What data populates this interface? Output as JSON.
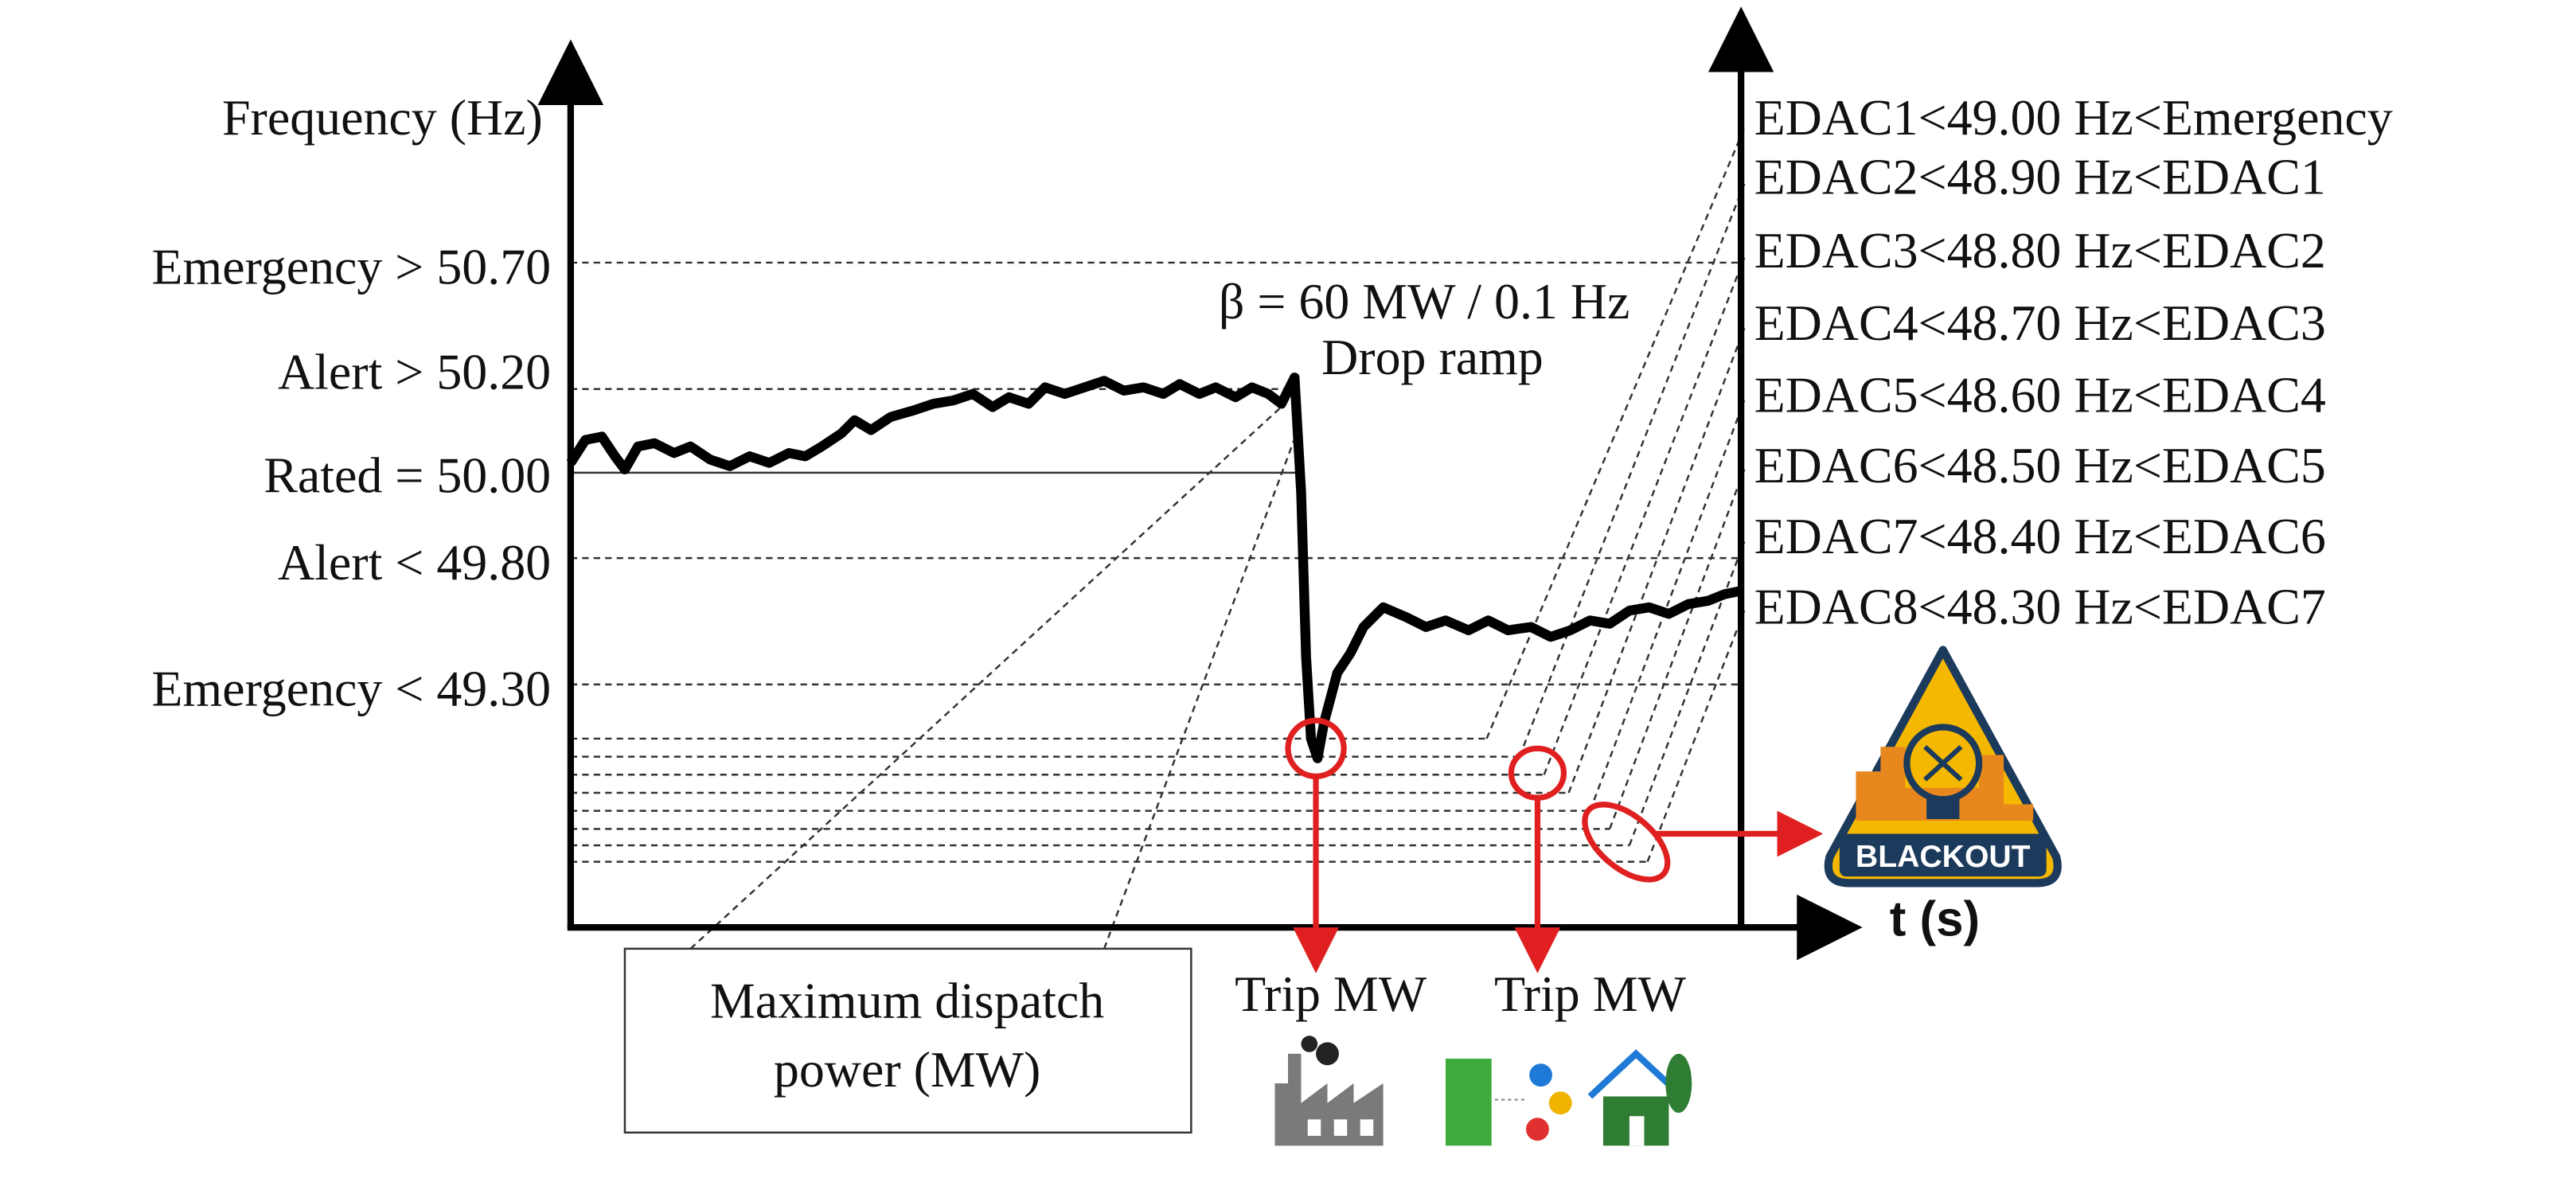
{
  "axis": {
    "y_label": "Frequency (Hz)",
    "x_label": "t (s)"
  },
  "thresholds": [
    "Emergency > 50.70",
    "Alert > 50.20",
    "Rated = 50.00",
    "Alert < 49.80",
    "Emergency < 49.30"
  ],
  "edac_levels": [
    "EDAC1<49.00 Hz<Emergency",
    "EDAC2<48.90 Hz<EDAC1",
    "EDAC3<48.80 Hz<EDAC2",
    "EDAC4<48.70 Hz<EDAC3",
    "EDAC5<48.60 Hz<EDAC4",
    "EDAC6<48.50 Hz<EDAC5",
    "EDAC7<48.40 Hz<EDAC6",
    "EDAC8<48.30 Hz<EDAC7"
  ],
  "annotations": {
    "beta": "β = 60 MW / 0.1 Hz",
    "drop_ramp": "Drop ramp"
  },
  "dispatch_box": {
    "line1": "Maximum dispatch",
    "line2": "power (MW)"
  },
  "trip_labels": [
    "Trip MW",
    "Trip MW"
  ],
  "blackout_icon": {
    "label": "BLACKOUT"
  }
}
